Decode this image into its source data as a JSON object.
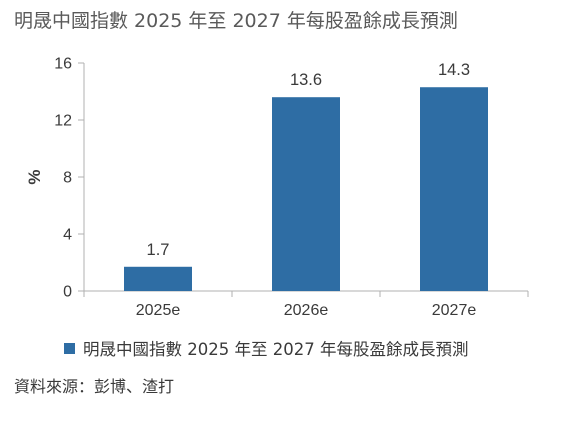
{
  "chart_data": {
    "type": "bar",
    "title": "明晟中國指數 2025 年至 2027 年每股盈餘成長預測",
    "categories": [
      "2025e",
      "2026e",
      "2027e"
    ],
    "series": [
      {
        "name": "明晟中國指數 2025 年至 2027 年每股盈餘成長預測",
        "values": [
          1.7,
          13.6,
          14.3
        ],
        "labels": [
          "1.7",
          "13.6",
          "14.3"
        ]
      }
    ],
    "ylabel": "%",
    "xlabel": "",
    "ylim": [
      0,
      16
    ],
    "yticks": [
      0,
      4,
      8,
      12,
      16
    ],
    "grid": false,
    "legend_position": "bottom",
    "bar_color": "#2e6da4",
    "axis_color": "#b0b0b0",
    "source": "資料來源：彭博、渣打"
  }
}
